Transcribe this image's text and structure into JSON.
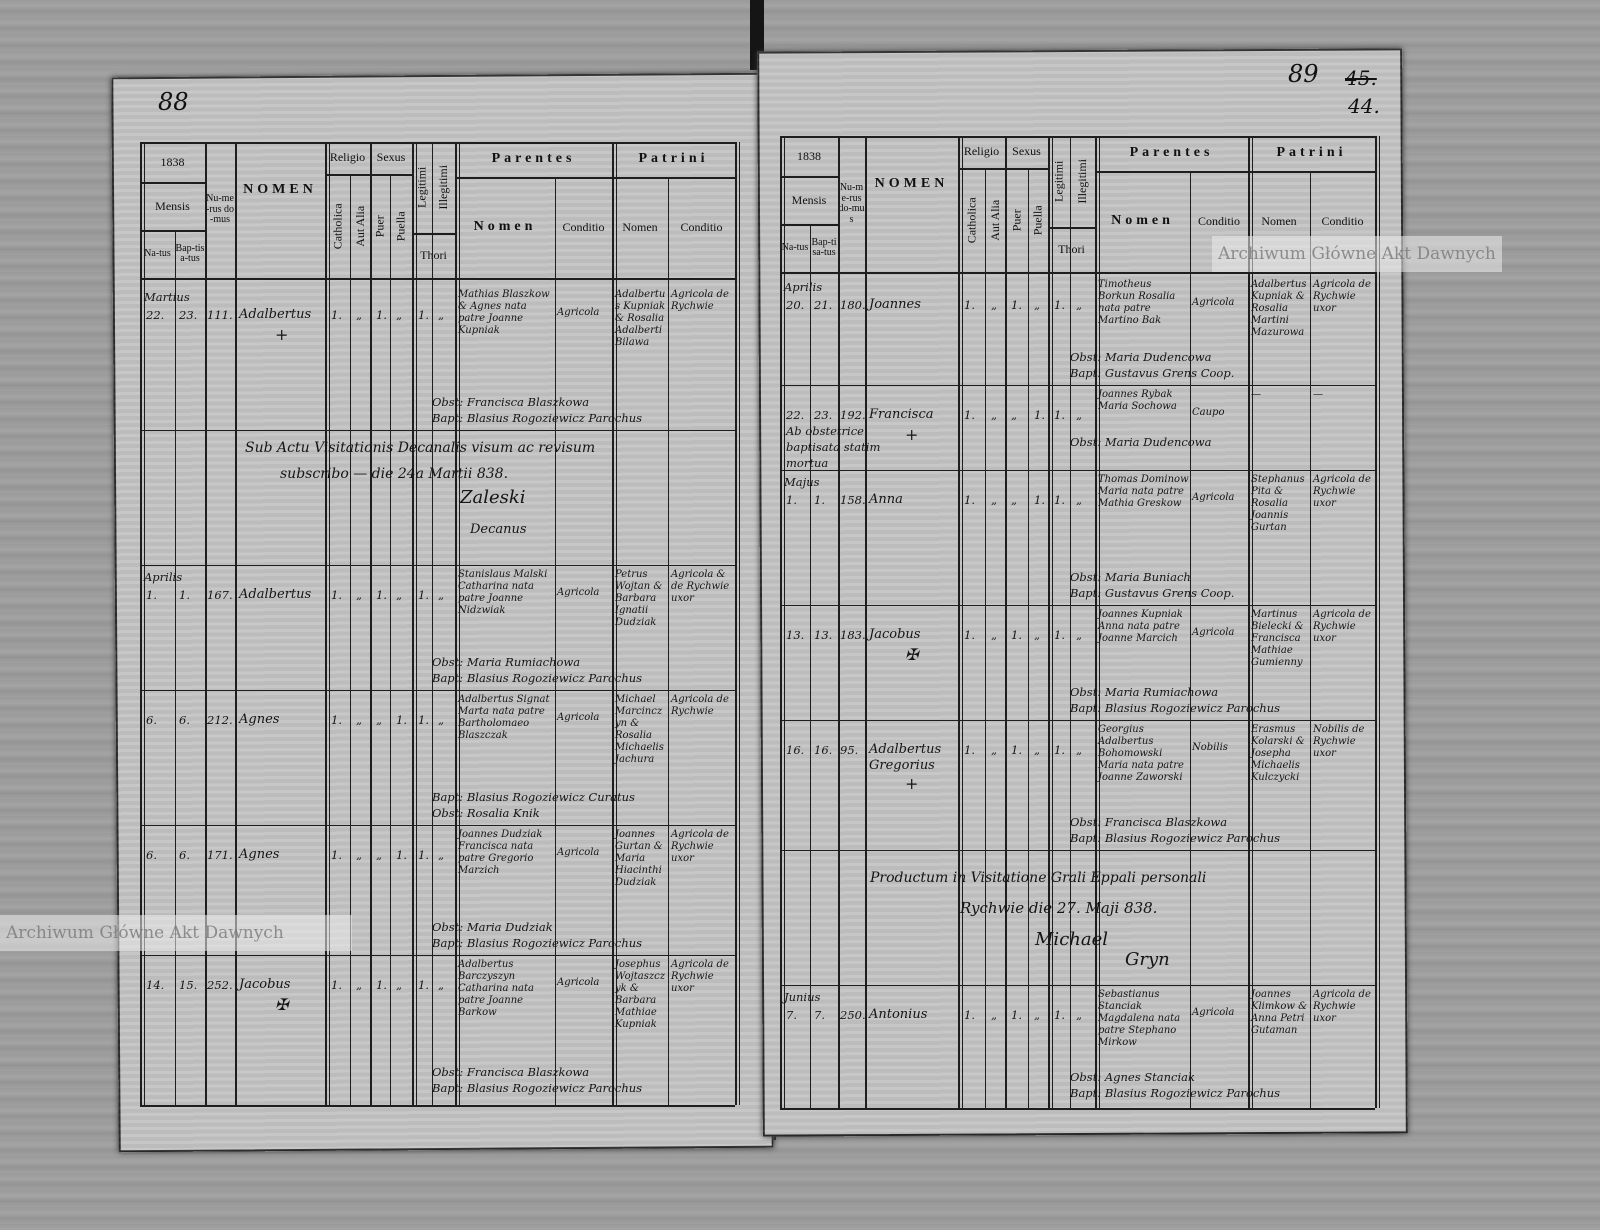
{
  "document": {
    "watermarks": [
      "Archiwum Główne Akt Dawnych",
      "Archiwum Główne Akt Dawnych"
    ],
    "header": {
      "year": "1838",
      "mensis": "Mensis",
      "natus": "Na-tus",
      "baptisatus": "Bap-tisa-tus",
      "numerus_domus": "Nu-me-rus do-mus",
      "nomen": "NOMEN",
      "religio": "Religio",
      "catholica": "Catholica",
      "aut_alia": "Aut Alia",
      "sexus": "Sexus",
      "puer": "Puer",
      "puella": "Puella",
      "legitimi": "Legitimi",
      "illegitimi": "Illegitimi",
      "thori": "Thori",
      "parentes": "Parentes",
      "parentes_nomen": "Nomen",
      "parentes_conditio": "Conditio",
      "patrini": "Patrini",
      "patrini_nomen": "Nomen",
      "patrini_conditio": "Conditio"
    },
    "left_page": {
      "page_number": "88",
      "entries": [
        {
          "month": "Martius",
          "natus": "22.",
          "baptisatus": "23.",
          "domus": "111.",
          "nomen": "Adalbertus",
          "mark": "+",
          "marks": [
            "1.",
            "„",
            "1.",
            "„",
            "1.",
            "„"
          ],
          "parentes": "Mathias Blaszkow & Agnes nata patre Joanne Kupniak",
          "parentes_conditio": "Agricola",
          "patrini": "Adalbertus Kupniak & Rosalia Adalberti Bilawa",
          "patrini_conditio": "Agricola de Rychwie",
          "obstetrix": "Obst: Francisca Blaszkowa",
          "baptizans": "Bapt: Blasius Rogoziewicz Parochus"
        },
        {
          "month": "Aprilis",
          "natus": "1.",
          "baptisatus": "1.",
          "domus": "167.",
          "nomen": "Adalbertus",
          "mark": "",
          "marks": [
            "1.",
            "„",
            "1.",
            "„",
            "1.",
            "„"
          ],
          "parentes": "Stanislaus Malski Catharina nata patre Joanne Nidzwiak",
          "parentes_conditio": "Agricola",
          "patrini": "Petrus Wojtan & Barbara Ignatii Dudziak",
          "patrini_conditio": "Agricola & de Rychwie uxor",
          "obstetrix": "Obst: Maria Rumiachowa",
          "baptizans": "Bapt: Blasius Rogoziewicz Parochus"
        },
        {
          "month": "",
          "natus": "6.",
          "baptisatus": "6.",
          "domus": "212.",
          "nomen": "Agnes",
          "mark": "",
          "marks": [
            "1.",
            "„",
            "„",
            "1.",
            "1.",
            "„"
          ],
          "parentes": "Adalbertus Signat Marta nata patre Bartholomaeo Blaszczak",
          "parentes_conditio": "Agricola",
          "patrini": "Michael Marcinczyn & Rosalia Michaelis Jachura",
          "patrini_conditio": "Agricola de Rychwie",
          "obstetrix": "Bapt: Blasius Rogoziewicz Curatus",
          "baptizans": "Obst: Rosalia Knik"
        },
        {
          "month": "",
          "natus": "6.",
          "baptisatus": "6.",
          "domus": "171.",
          "nomen": "Agnes",
          "mark": "",
          "marks": [
            "1.",
            "„",
            "„",
            "1.",
            "1.",
            "„"
          ],
          "parentes": "Joannes Dudziak Francisca nata patre Gregorio Marzich",
          "parentes_conditio": "Agricola",
          "patrini": "Joannes Gurtan & Maria Hiacinthi Dudziak",
          "patrini_conditio": "Agricola de Rychwie uxor",
          "obstetrix": "Obst: Maria Dudziak",
          "baptizans": "Bapt: Blasius Rogoziewicz Parochus"
        },
        {
          "month": "",
          "natus": "14.",
          "baptisatus": "15.",
          "domus": "252.",
          "nomen": "Jacobus",
          "mark": "✠",
          "marks": [
            "1.",
            "„",
            "1.",
            "„",
            "1.",
            "„"
          ],
          "parentes": "Adalbertus Barczyszyn Catharina nata patre Joanne Barkow",
          "parentes_conditio": "Agricola",
          "patrini": "Josephus Wojtaszczyk & Barbara Mathiae Kupniak",
          "patrini_conditio": "Agricola de Rychwie uxor",
          "obstetrix": "Obst: Francisca Blaszkowa",
          "baptizans": "Bapt: Blasius Rogoziewicz Parochus"
        }
      ],
      "note": {
        "line1": "Sub Actu Visitationis Decanalis visum ac revisum",
        "line2": "subscribo — die 24a Martii 838.",
        "signature": "Zaleski",
        "title": "Decanus"
      }
    },
    "right_page": {
      "page_number": "89",
      "folio_old": "45.",
      "folio_new": "44.",
      "entries": [
        {
          "month": "Aprilis",
          "natus": "20.",
          "baptisatus": "21.",
          "domus": "180.",
          "nomen": "Joannes",
          "mark": "",
          "marks": [
            "1.",
            "„",
            "1.",
            "„",
            "1.",
            "„"
          ],
          "parentes": "Timotheus Borkun Rosalia nata patre Martino Bak",
          "parentes_conditio": "Agricola",
          "patrini": "Adalbertus Kupniak & Rosalia Martini Mazurowa",
          "patrini_conditio": "Agricola de Rychwie uxor",
          "obstetrix": "Obst: Maria Dudencowa",
          "baptizans": "Bapt: Gustavus Grens Coop."
        },
        {
          "month": "",
          "natus": "22. Ab obstetrice baptisata statim mortua",
          "baptisatus": "23.",
          "domus": "192.",
          "nomen": "Francisca",
          "mark": "+",
          "marks": [
            "1.",
            "„",
            "„",
            "1.",
            "1.",
            "„"
          ],
          "parentes": "Joannes Rybak Maria Sochowa",
          "parentes_conditio": "Caupo",
          "patrini": "—",
          "patrini_conditio": "—",
          "obstetrix": "Obst: Maria Dudencowa",
          "baptizans": ""
        },
        {
          "month": "Majus",
          "natus": "1.",
          "baptisatus": "1.",
          "domus": "158.",
          "nomen": "Anna",
          "mark": "",
          "marks": [
            "1.",
            "„",
            "„",
            "1.",
            "1.",
            "„"
          ],
          "parentes": "Thomas Dominow Maria nata patre Mathia Greskow",
          "parentes_conditio": "Agricola",
          "patrini": "Stephanus Pita & Rosalia Joannis Gurtan",
          "patrini_conditio": "Agricola de Rychwie uxor",
          "obstetrix": "Obst: Maria Buniach",
          "baptizans": "Bapt: Gustavus Grens Coop."
        },
        {
          "month": "",
          "natus": "13.",
          "baptisatus": "13.",
          "domus": "183.",
          "nomen": "Jacobus",
          "mark": "✠",
          "marks": [
            "1.",
            "„",
            "1.",
            "„",
            "1.",
            "„"
          ],
          "parentes": "Joannes Kupniak Anna nata patre Joanne Marcich",
          "parentes_conditio": "Agricola",
          "patrini": "Martinus Bielecki & Francisca Mathiae Gumienny",
          "patrini_conditio": "Agricola de Rychwie uxor",
          "obstetrix": "Obst: Maria Rumiachowa",
          "baptizans": "Bapt: Blasius Rogoziewicz Parochus"
        },
        {
          "month": "",
          "natus": "16.",
          "baptisatus": "16.",
          "domus": "95.",
          "nomen": "Adalbertus Gregorius",
          "mark": "+",
          "marks": [
            "1.",
            "„",
            "1.",
            "„",
            "1.",
            "„"
          ],
          "parentes": "Georgius Adalbertus Bohomowski Maria nata patre Joanne Zaworski",
          "parentes_conditio": "Nobilis",
          "patrini": "Erasmus Kolarski & Josepha Michaelis Kulczycki",
          "patrini_conditio": "Nobilis de Rychwie uxor",
          "obstetrix": "Obst: Francisca Blaszkowa",
          "baptizans": "Bapt: Blasius Rogoziewicz Parochus"
        },
        {
          "month": "Junius",
          "natus": "7.",
          "baptisatus": "7.",
          "domus": "250.",
          "nomen": "Antonius",
          "mark": "",
          "marks": [
            "1.",
            "„",
            "1.",
            "„",
            "1.",
            "„"
          ],
          "parentes": "Sebastianus Stanciak Magdalena nata patre Stephano Mirkow",
          "parentes_conditio": "Agricola",
          "patrini": "Joannes Klimkow & Anna Petri Gutaman",
          "patrini_conditio": "Agricola de Rychwie uxor",
          "obstetrix": "Obst: Agnes Stanciak",
          "baptizans": "Bapt: Blasius Rogoziewicz Parochus"
        }
      ],
      "note": {
        "line1": "Productum in Visitatione Grali Eppali personali",
        "line2": "Rychwie die 27. Maji 838.",
        "signature": "Michael",
        "title": "Gryn"
      }
    }
  }
}
